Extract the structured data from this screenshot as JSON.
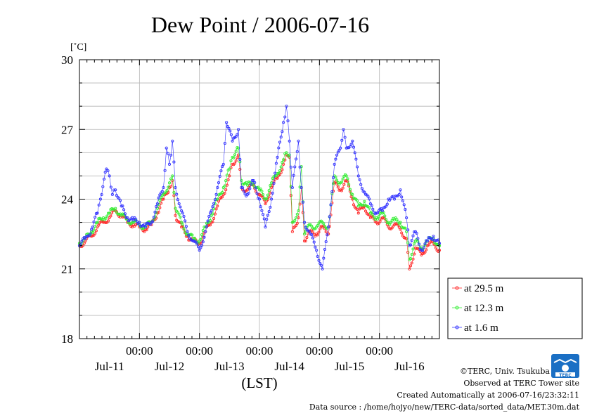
{
  "chart_data": {
    "type": "line",
    "title": "Dew Point / 2006-07-16",
    "ylabel": "[˚C]",
    "xlabel": "(LST)",
    "ylim": [
      18,
      30
    ],
    "yticks": [
      "18",
      "21",
      "24",
      "27",
      "30"
    ],
    "xlim": [
      0,
      6
    ],
    "time_ticks": [
      {
        "x": 1,
        "label": "00:00"
      },
      {
        "x": 2,
        "label": "00:00"
      },
      {
        "x": 3,
        "label": "00:00"
      },
      {
        "x": 4,
        "label": "00:00"
      },
      {
        "x": 5,
        "label": "00:00"
      }
    ],
    "date_labels": [
      {
        "x": 0.5,
        "label": "Jul-11"
      },
      {
        "x": 1.5,
        "label": "Jul-12"
      },
      {
        "x": 2.5,
        "label": "Jul-13"
      },
      {
        "x": 3.5,
        "label": "Jul-14"
      },
      {
        "x": 4.5,
        "label": "Jul-15"
      },
      {
        "x": 5.5,
        "label": "Jul-16"
      }
    ],
    "grid": true,
    "legend_position": "bottom-right outside",
    "series": [
      {
        "name": "at 29.5 m",
        "color": "#ff2a2a",
        "points": [
          [
            0,
            22.0
          ],
          [
            0.1,
            22.2
          ],
          [
            0.2,
            22.4
          ],
          [
            0.3,
            22.8
          ],
          [
            0.4,
            23.0
          ],
          [
            0.5,
            23.2
          ],
          [
            0.6,
            23.5
          ],
          [
            0.7,
            23.3
          ],
          [
            0.8,
            23.0
          ],
          [
            0.9,
            22.9
          ],
          [
            1.0,
            22.8
          ],
          [
            1.1,
            22.7
          ],
          [
            1.2,
            22.9
          ],
          [
            1.3,
            23.4
          ],
          [
            1.4,
            24.0
          ],
          [
            1.5,
            24.5
          ],
          [
            1.55,
            24.8
          ],
          [
            1.6,
            23.3
          ],
          [
            1.7,
            22.8
          ],
          [
            1.8,
            22.4
          ],
          [
            1.9,
            22.2
          ],
          [
            2.0,
            22.1
          ],
          [
            2.1,
            22.6
          ],
          [
            2.2,
            23.0
          ],
          [
            2.3,
            23.7
          ],
          [
            2.4,
            24.2
          ],
          [
            2.5,
            25.0
          ],
          [
            2.55,
            25.5
          ],
          [
            2.65,
            25.9
          ],
          [
            2.7,
            24.5
          ],
          [
            2.8,
            24.4
          ],
          [
            2.9,
            24.6
          ],
          [
            3.0,
            24.2
          ],
          [
            3.1,
            23.8
          ],
          [
            3.2,
            24.5
          ],
          [
            3.3,
            24.9
          ],
          [
            3.4,
            25.5
          ],
          [
            3.45,
            25.9
          ],
          [
            3.5,
            25.8
          ],
          [
            3.55,
            22.6
          ],
          [
            3.65,
            23.2
          ],
          [
            3.7,
            24.5
          ],
          [
            3.75,
            22.2
          ],
          [
            3.85,
            22.6
          ],
          [
            3.95,
            22.5
          ],
          [
            4.05,
            22.8
          ],
          [
            4.15,
            22.5
          ],
          [
            4.25,
            24.7
          ],
          [
            4.35,
            24.4
          ],
          [
            4.45,
            24.8
          ],
          [
            4.55,
            24.0
          ],
          [
            4.65,
            23.4
          ],
          [
            4.75,
            23.7
          ],
          [
            4.85,
            23.2
          ],
          [
            4.95,
            23.0
          ],
          [
            5.05,
            23.2
          ],
          [
            5.15,
            22.8
          ],
          [
            5.25,
            22.9
          ],
          [
            5.35,
            22.7
          ],
          [
            5.45,
            22.3
          ],
          [
            5.5,
            21.0
          ],
          [
            5.6,
            21.9
          ],
          [
            5.7,
            21.6
          ],
          [
            5.8,
            22.0
          ],
          [
            5.9,
            22.1
          ],
          [
            6.0,
            21.8
          ]
        ]
      },
      {
        "name": "at 12.3 m",
        "color": "#33ee33",
        "points": [
          [
            0,
            22.1
          ],
          [
            0.1,
            22.3
          ],
          [
            0.2,
            22.6
          ],
          [
            0.3,
            23.0
          ],
          [
            0.4,
            23.2
          ],
          [
            0.5,
            23.4
          ],
          [
            0.6,
            23.6
          ],
          [
            0.7,
            23.3
          ],
          [
            0.8,
            23.1
          ],
          [
            0.9,
            23.0
          ],
          [
            1.0,
            22.9
          ],
          [
            1.1,
            22.8
          ],
          [
            1.2,
            23.0
          ],
          [
            1.3,
            23.6
          ],
          [
            1.4,
            24.2
          ],
          [
            1.5,
            24.7
          ],
          [
            1.55,
            25.0
          ],
          [
            1.6,
            23.6
          ],
          [
            1.7,
            23.0
          ],
          [
            1.8,
            22.5
          ],
          [
            1.9,
            22.3
          ],
          [
            2.0,
            22.2
          ],
          [
            2.1,
            22.8
          ],
          [
            2.2,
            23.3
          ],
          [
            2.3,
            24.0
          ],
          [
            2.4,
            24.5
          ],
          [
            2.5,
            25.3
          ],
          [
            2.55,
            25.8
          ],
          [
            2.65,
            26.2
          ],
          [
            2.7,
            24.8
          ],
          [
            2.8,
            24.6
          ],
          [
            2.9,
            24.7
          ],
          [
            3.0,
            24.4
          ],
          [
            3.1,
            24.0
          ],
          [
            3.2,
            24.7
          ],
          [
            3.3,
            25.1
          ],
          [
            3.4,
            25.7
          ],
          [
            3.45,
            26.0
          ],
          [
            3.5,
            25.9
          ],
          [
            3.55,
            23.0
          ],
          [
            3.65,
            23.5
          ],
          [
            3.7,
            25.4
          ],
          [
            3.75,
            22.5
          ],
          [
            3.85,
            22.9
          ],
          [
            3.95,
            22.8
          ],
          [
            4.05,
            23.0
          ],
          [
            4.15,
            22.8
          ],
          [
            4.25,
            25.0
          ],
          [
            4.35,
            24.7
          ],
          [
            4.45,
            25.0
          ],
          [
            4.55,
            24.2
          ],
          [
            4.65,
            23.7
          ],
          [
            4.75,
            23.9
          ],
          [
            4.85,
            23.4
          ],
          [
            4.95,
            23.2
          ],
          [
            5.05,
            23.4
          ],
          [
            5.15,
            23.0
          ],
          [
            5.25,
            23.1
          ],
          [
            5.35,
            23.0
          ],
          [
            5.45,
            22.6
          ],
          [
            5.5,
            21.4
          ],
          [
            5.6,
            22.2
          ],
          [
            5.7,
            21.9
          ],
          [
            5.8,
            22.2
          ],
          [
            5.9,
            22.3
          ],
          [
            6.0,
            22.0
          ]
        ]
      },
      {
        "name": "at 1.6 m",
        "color": "#3333ff",
        "points": [
          [
            0,
            22.0
          ],
          [
            0.1,
            22.3
          ],
          [
            0.2,
            22.7
          ],
          [
            0.3,
            23.4
          ],
          [
            0.35,
            24.0
          ],
          [
            0.45,
            25.3
          ],
          [
            0.5,
            25.0
          ],
          [
            0.55,
            24.2
          ],
          [
            0.6,
            24.4
          ],
          [
            0.7,
            23.7
          ],
          [
            0.8,
            23.2
          ],
          [
            0.9,
            23.1
          ],
          [
            1.0,
            23.0
          ],
          [
            1.1,
            22.8
          ],
          [
            1.2,
            23.0
          ],
          [
            1.3,
            23.8
          ],
          [
            1.4,
            24.5
          ],
          [
            1.45,
            26.2
          ],
          [
            1.5,
            25.5
          ],
          [
            1.55,
            26.5
          ],
          [
            1.6,
            24.5
          ],
          [
            1.7,
            23.5
          ],
          [
            1.8,
            22.6
          ],
          [
            1.9,
            22.2
          ],
          [
            2.0,
            21.8
          ],
          [
            2.1,
            22.6
          ],
          [
            2.2,
            23.5
          ],
          [
            2.3,
            24.5
          ],
          [
            2.4,
            25.5
          ],
          [
            2.45,
            27.3
          ],
          [
            2.55,
            26.5
          ],
          [
            2.65,
            27.0
          ],
          [
            2.7,
            24.5
          ],
          [
            2.8,
            24.2
          ],
          [
            2.9,
            24.8
          ],
          [
            3.0,
            24.0
          ],
          [
            3.1,
            22.8
          ],
          [
            3.2,
            24.0
          ],
          [
            3.3,
            25.8
          ],
          [
            3.4,
            27.3
          ],
          [
            3.45,
            28.0
          ],
          [
            3.5,
            26.5
          ],
          [
            3.55,
            24.5
          ],
          [
            3.65,
            26.5
          ],
          [
            3.7,
            24.5
          ],
          [
            3.75,
            23.0
          ],
          [
            3.85,
            22.5
          ],
          [
            3.95,
            21.8
          ],
          [
            4.05,
            21.0
          ],
          [
            4.15,
            22.8
          ],
          [
            4.25,
            25.5
          ],
          [
            4.35,
            26.2
          ],
          [
            4.4,
            27.0
          ],
          [
            4.45,
            26.2
          ],
          [
            4.55,
            26.5
          ],
          [
            4.65,
            25.0
          ],
          [
            4.75,
            24.3
          ],
          [
            4.85,
            23.8
          ],
          [
            4.95,
            23.4
          ],
          [
            5.05,
            23.5
          ],
          [
            5.15,
            24.0
          ],
          [
            5.25,
            24.0
          ],
          [
            5.35,
            24.4
          ],
          [
            5.45,
            23.2
          ],
          [
            5.5,
            22.0
          ],
          [
            5.6,
            22.6
          ],
          [
            5.7,
            21.8
          ],
          [
            5.8,
            22.2
          ],
          [
            5.9,
            22.4
          ],
          [
            6.0,
            22.1
          ]
        ]
      }
    ]
  },
  "footer": {
    "copyright": "©TERC, Univ. Tsukuba",
    "observed": "Observed at TERC Tower site",
    "created": "Created Automatically at 2006-07-16/23:32:11",
    "source": "Data source : /home/hojyo/new/TERC-data/sorted_data/MET.30m.dat"
  },
  "logo": {
    "text": "TERC",
    "color": "#1a6fc4"
  }
}
